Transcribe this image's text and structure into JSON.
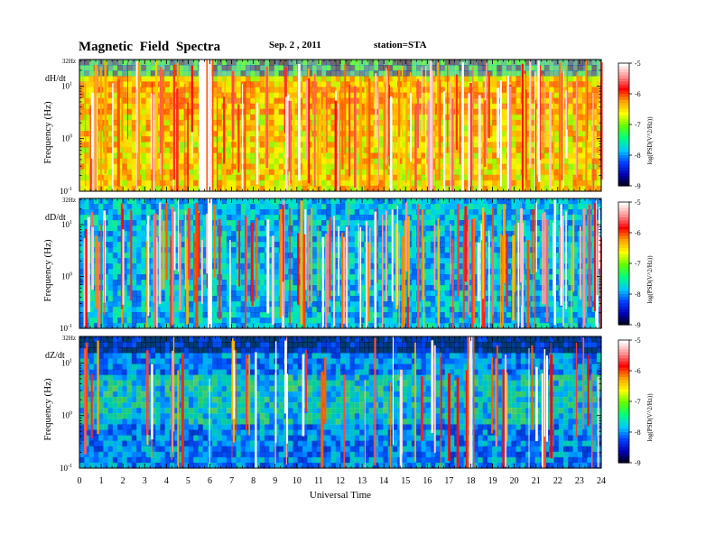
{
  "header": {
    "title": "Magnetic Field Spectra",
    "date": "Sep. 2 , 2011",
    "station": "station=STA"
  },
  "chart_data": {
    "type": "heatmap",
    "xlabel": "Universal Time",
    "xlim": [
      0,
      24
    ],
    "xticks": [
      "0",
      "1",
      "2",
      "3",
      "4",
      "5",
      "6",
      "7",
      "8",
      "9",
      "10",
      "11",
      "12",
      "13",
      "14",
      "15",
      "16",
      "17",
      "18",
      "19",
      "20",
      "21",
      "22",
      "23",
      "24"
    ],
    "y_top_label": "32Hz",
    "y_scale": "log",
    "ylim": [
      0.1,
      32
    ],
    "colorbar": {
      "label": "log(PSD(V^2/Hz))",
      "ticks": [
        "-5",
        "-6",
        "-7",
        "-8",
        "-9"
      ],
      "range": [
        -9,
        -5
      ],
      "colors": [
        "#000000",
        "#0000b0",
        "#0040ff",
        "#00c8ff",
        "#00ff80",
        "#60ff00",
        "#ffff00",
        "#ffa000",
        "#ff0000",
        "#ff9090",
        "#ffffff"
      ]
    },
    "panels": [
      {
        "name": "dH/dt",
        "ylabel": "Frequency (Hz)",
        "yticks": [
          {
            "base": "10",
            "exp": "1",
            "value": 10
          },
          {
            "base": "10",
            "exp": "0",
            "value": 1
          },
          {
            "base": "10",
            "exp": "-1",
            "value": 0.1
          }
        ],
        "background_level": -6.5,
        "gap_hours": [
          [
            5.5,
            5.95
          ]
        ],
        "burst_hours": [
          6.0
        ]
      },
      {
        "name": "dD/dt",
        "ylabel": "Frequency (Hz)",
        "yticks": [
          {
            "base": "10",
            "exp": "1",
            "value": 10
          },
          {
            "base": "10",
            "exp": "0",
            "value": 1
          },
          {
            "base": "10",
            "exp": "-1",
            "value": 0.1
          }
        ],
        "background_level": -7.8,
        "gap_hours": [
          [
            5.9,
            6.1
          ]
        ],
        "burst_hours": []
      },
      {
        "name": "dZ/dt",
        "ylabel": "Frequency (Hz)",
        "yticks": [
          {
            "base": "10",
            "exp": "1",
            "value": 10
          },
          {
            "base": "10",
            "exp": "0",
            "value": 1
          },
          {
            "base": "10",
            "exp": "-1",
            "value": 0.1
          }
        ],
        "background_level": -8.0,
        "gap_hours": [],
        "burst_hours": [
          18.0
        ]
      }
    ]
  }
}
